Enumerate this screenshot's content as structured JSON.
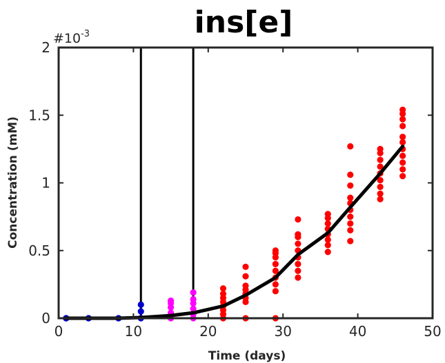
{
  "chart_data": {
    "type": "scatter",
    "title": "ins[e]",
    "xlabel": "Time (days)",
    "ylabel": "Concentration (mM)",
    "exponent_base": "#10",
    "exponent_power": "-3",
    "xlim": [
      0,
      50
    ],
    "ylim": [
      0,
      2
    ],
    "x_ticks": [
      0,
      10,
      20,
      30,
      40,
      50
    ],
    "x_tick_labels": [
      "0",
      "10",
      "20",
      "30",
      "40",
      "50"
    ],
    "y_ticks": [
      0,
      0.5,
      1,
      1.5,
      2
    ],
    "y_tick_labels": [
      "0",
      "0.5",
      "1",
      "1.5",
      "2"
    ],
    "grid": false,
    "vertical_lines": [
      11,
      18
    ],
    "colors": {
      "phase1": "#0000cc",
      "phase2": "#ff00ff",
      "phase3": "#ff0000",
      "mean": "#000000"
    },
    "scatter_groups": [
      {
        "color": "phase1",
        "x": 1,
        "y": [
          0,
          0,
          0
        ]
      },
      {
        "color": "phase1",
        "x": 4,
        "y": [
          0,
          0
        ]
      },
      {
        "color": "phase1",
        "x": 8,
        "y": [
          0,
          0
        ]
      },
      {
        "color": "phase1",
        "x": 11,
        "y": [
          0,
          0.05,
          0.1
        ]
      },
      {
        "color": "phase2",
        "x": 15,
        "y": [
          0,
          0.04,
          0.08,
          0.11,
          0.13
        ]
      },
      {
        "color": "phase2",
        "x": 18,
        "y": [
          0,
          0.03,
          0.07,
          0.11,
          0.14,
          0.19
        ]
      },
      {
        "color": "phase3",
        "x": 22,
        "y": [
          0,
          0.03,
          0.06,
          0.09,
          0.12,
          0.15,
          0.18,
          0.22
        ]
      },
      {
        "color": "phase3",
        "x": 25,
        "y": [
          0,
          0.12,
          0.15,
          0.18,
          0.21,
          0.24,
          0.31,
          0.38
        ]
      },
      {
        "color": "phase3",
        "x": 29,
        "y": [
          0,
          0.2,
          0.25,
          0.3,
          0.35,
          0.4,
          0.45,
          0.48,
          0.5
        ]
      },
      {
        "color": "phase3",
        "x": 32,
        "y": [
          0.3,
          0.35,
          0.4,
          0.45,
          0.5,
          0.55,
          0.6,
          0.62,
          0.73
        ]
      },
      {
        "color": "phase3",
        "x": 36,
        "y": [
          0.49,
          0.54,
          0.58,
          0.62,
          0.66,
          0.7,
          0.74,
          0.77
        ]
      },
      {
        "color": "phase3",
        "x": 39,
        "y": [
          0.57,
          0.65,
          0.7,
          0.75,
          0.8,
          0.85,
          0.89,
          0.98,
          1.06,
          1.27
        ]
      },
      {
        "color": "phase3",
        "x": 43,
        "y": [
          0.88,
          0.92,
          0.97,
          1.02,
          1.07,
          1.12,
          1.17,
          1.22,
          1.25
        ]
      },
      {
        "color": "phase3",
        "x": 46,
        "y": [
          1.05,
          1.1,
          1.15,
          1.2,
          1.25,
          1.3,
          1.34,
          1.42,
          1.47,
          1.51,
          1.54
        ]
      }
    ],
    "mean_line": {
      "x": [
        1,
        4,
        8,
        11,
        15,
        18,
        22,
        25,
        29,
        32,
        36,
        39,
        43,
        46
      ],
      "y": [
        0,
        0,
        0,
        0.005,
        0.02,
        0.04,
        0.09,
        0.17,
        0.3,
        0.47,
        0.63,
        0.82,
        1.07,
        1.27
      ]
    }
  }
}
